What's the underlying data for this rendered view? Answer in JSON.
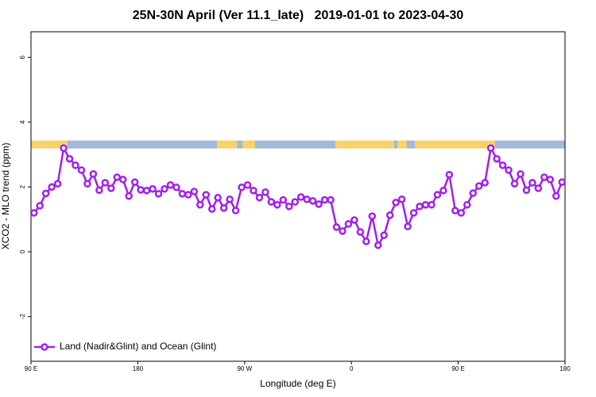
{
  "chart_data": {
    "type": "line",
    "title": "25N-30N April (Ver 11.1_late)   2019-01-01 to 2023-04-30",
    "xlabel": "Longitude (deg E)",
    "ylabel": "XCO2 - MLO trend (ppm)",
    "xlim": [
      90,
      540
    ],
    "ylim": [
      -3.38,
      6.79
    ],
    "xticks": [
      {
        "value": 90,
        "label": "90 E"
      },
      {
        "value": 180,
        "label": "180"
      },
      {
        "value": 270,
        "label": "90 W"
      },
      {
        "value": 360,
        "label": "0"
      },
      {
        "value": 450,
        "label": "90 E"
      },
      {
        "value": 540,
        "label": "180"
      }
    ],
    "yticks": [
      -2,
      0,
      2,
      4,
      6
    ],
    "legend": "lower left",
    "x": [
      92.5,
      97.5,
      102.5,
      107.5,
      112.5,
      117.5,
      122.5,
      127.5,
      132.5,
      137.5,
      142.5,
      147.5,
      152.5,
      157.5,
      162.5,
      167.5,
      172.5,
      177.5,
      182.5,
      187.5,
      192.5,
      197.5,
      202.5,
      207.5,
      212.5,
      217.5,
      222.5,
      227.5,
      232.5,
      237.5,
      242.5,
      247.5,
      252.5,
      257.5,
      262.5,
      267.5,
      272.5,
      277.5,
      282.5,
      287.5,
      292.5,
      297.5,
      302.5,
      307.5,
      312.5,
      317.5,
      322.5,
      327.5,
      332.5,
      337.5,
      342.5,
      347.5,
      352.5,
      357.5,
      362.5,
      367.5,
      372.5,
      377.5,
      382.5,
      387.5,
      392.5,
      397.5,
      402.5,
      407.5,
      412.5,
      417.5,
      422.5,
      427.5,
      432.5,
      437.5,
      442.5,
      447.5,
      452.5,
      457.5,
      462.5,
      467.5,
      472.5,
      477.5,
      482.5,
      487.5,
      492.5,
      497.5,
      502.5,
      507.5,
      512.5,
      517.5,
      522.5,
      527.5,
      532.5,
      537.5
    ],
    "series": [
      {
        "name": "Land (Nadir&Glint) and Ocean (Glint)",
        "color": "#a020f0",
        "values": [
          1.2,
          1.42,
          1.8,
          2.0,
          2.1,
          3.2,
          2.87,
          2.67,
          2.52,
          2.1,
          2.4,
          1.9,
          2.13,
          1.96,
          2.3,
          2.23,
          1.72,
          2.15,
          1.91,
          1.89,
          1.94,
          1.79,
          1.94,
          2.06,
          1.99,
          1.79,
          1.76,
          1.86,
          1.45,
          1.76,
          1.32,
          1.67,
          1.35,
          1.62,
          1.27,
          1.99,
          2.06,
          1.89,
          1.67,
          1.84,
          1.54,
          1.45,
          1.6,
          1.4,
          1.54,
          1.69,
          1.62,
          1.57,
          1.47,
          1.6,
          1.6,
          0.76,
          0.64,
          0.86,
          0.98,
          0.61,
          0.32,
          1.1,
          0.2,
          0.51,
          1.13,
          1.52,
          1.62,
          0.78,
          1.2,
          1.4,
          1.45,
          1.45,
          1.76,
          1.89,
          2.38,
          1.27,
          1.2,
          1.45,
          1.81,
          2.03,
          2.13,
          3.2,
          2.87,
          2.67,
          2.52,
          2.1,
          2.4,
          1.9,
          2.13,
          1.96,
          2.3,
          2.23,
          1.72,
          2.15
        ]
      }
    ]
  }
}
